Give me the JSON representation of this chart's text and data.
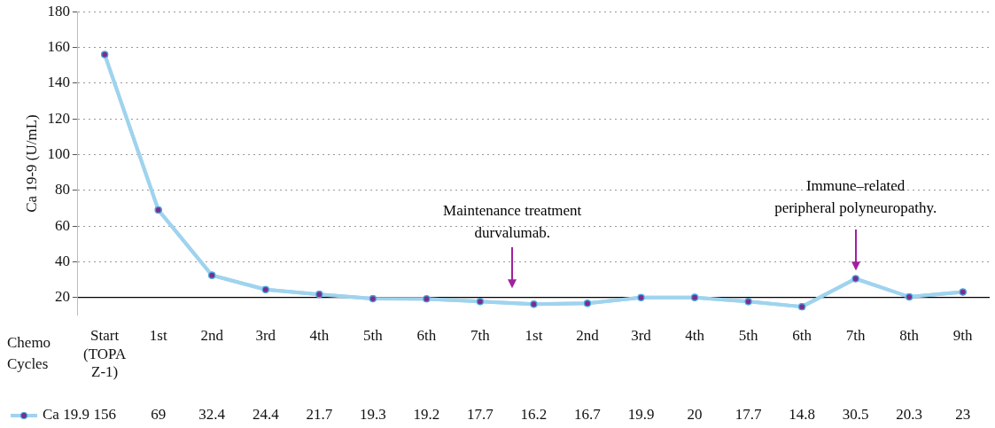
{
  "chart_data": {
    "type": "line",
    "ylabel": "Ca 19-9 (U/mL)",
    "xlabel": "Chemo Cycles",
    "categories": [
      "Start (TOPA Z-1)",
      "1st",
      "2nd",
      "3rd",
      "4th",
      "5th",
      "6th",
      "7th",
      "1st",
      "2nd",
      "3rd",
      "4th",
      "5th",
      "6th",
      "7th",
      "8th",
      "9th"
    ],
    "series": [
      {
        "name": "Ca 19.9",
        "color": "#9fd3ee",
        "values": [
          156,
          69,
          32.4,
          24.4,
          21.7,
          19.3,
          19.2,
          17.7,
          16.2,
          16.7,
          19.9,
          20,
          17.7,
          14.8,
          30.5,
          20.3,
          23
        ]
      }
    ],
    "ylim": [
      10,
      180
    ],
    "yticks": [
      20,
      40,
      60,
      80,
      100,
      120,
      140,
      160,
      180
    ],
    "grid": "y",
    "marker": "circle",
    "legend": "bottom left",
    "data_labels": true,
    "annotations": [
      "Maintenance treatment durvalumab.",
      "Immune–related peripheral polyneuropathy."
    ]
  }
}
